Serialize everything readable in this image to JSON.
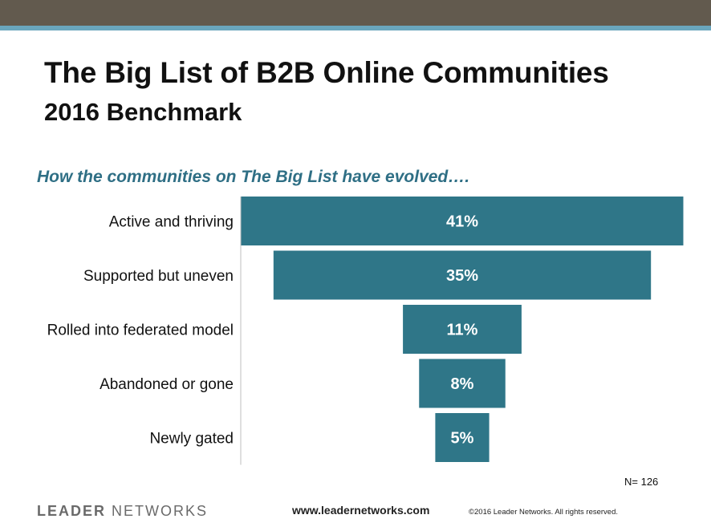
{
  "header": {
    "title": "The Big List of B2B Online Communities",
    "subtitle": "2016 Benchmark"
  },
  "question": "How the communities on The Big List have evolved….",
  "colors": {
    "bar": "#2f7688",
    "header_band": "#625a4e",
    "header_stripe": "#6aa6bd",
    "question_text": "#2f6f85"
  },
  "chart_data": {
    "type": "bar",
    "orientation": "horizontal-funnel",
    "categories": [
      "Active and thriving",
      "Supported but uneven",
      "Rolled into federated model",
      "Abandoned or gone",
      "Newly gated"
    ],
    "values": [
      41,
      35,
      11,
      8,
      5
    ],
    "value_labels": [
      "41%",
      "35%",
      "11%",
      "8%",
      "5%"
    ],
    "unit": "%",
    "title": "How the communities on The Big List have evolved….",
    "xlabel": "",
    "ylabel": "",
    "grid": false,
    "legend": "none"
  },
  "footnote": "N= 126",
  "footer": {
    "logo_word1": "LEADER",
    "logo_word2": "NETWORKS",
    "url": "www.leadernetworks.com",
    "copyright": "©2016 Leader Networks. All rights reserved."
  }
}
